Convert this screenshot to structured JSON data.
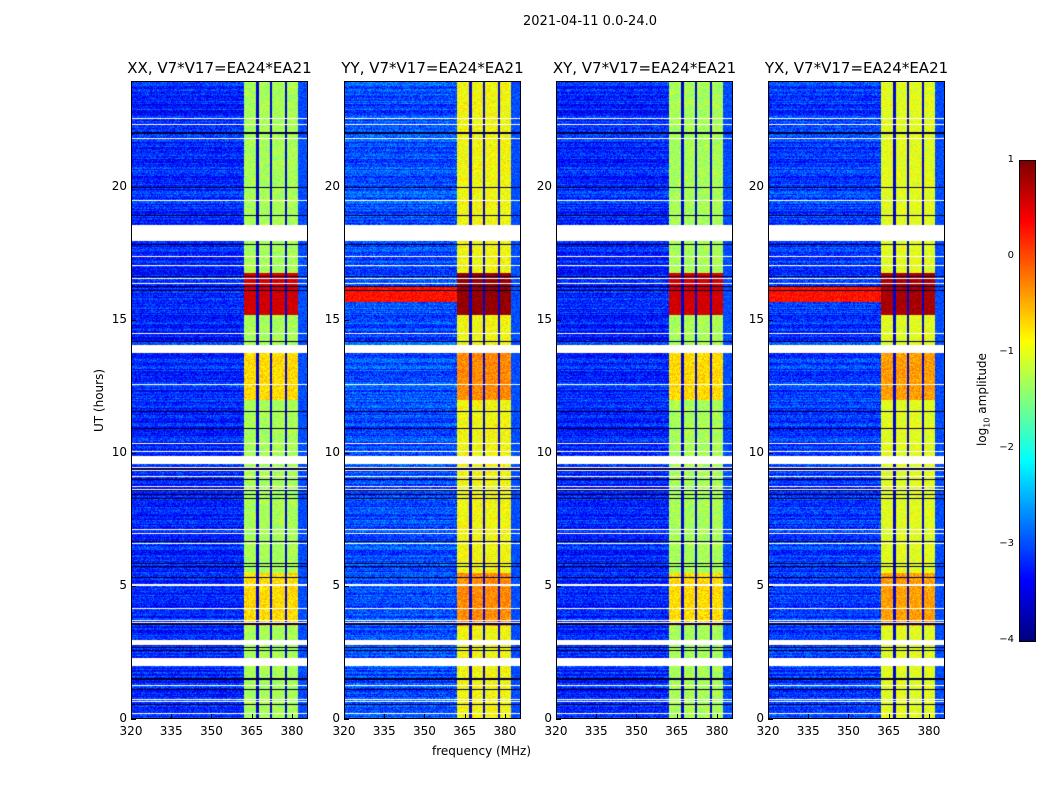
{
  "suptitle": "2021-04-11 0.0-24.0",
  "chart_data": {
    "type": "heatmap",
    "title": "2021-04-11 0.0-24.0",
    "xlabel": "frequency (MHz)",
    "ylabel": "UT (hours)",
    "xlim": [
      320,
      386
    ],
    "ylim": [
      0,
      24
    ],
    "xticks": [
      "320",
      "335",
      "350",
      "365",
      "380"
    ],
    "yticks": [
      "0",
      "5",
      "10",
      "15",
      "20"
    ],
    "panels": [
      {
        "title": "XX, V7*V17=EA24*EA21",
        "background_log_amp": -3.2,
        "band_log_amp": -1.3,
        "strong_rfi_log_amp": 0.6
      },
      {
        "title": "YY, V7*V17=EA24*EA21",
        "background_log_amp": -3.0,
        "band_log_amp": -0.9,
        "strong_rfi_log_amp": 0.9
      },
      {
        "title": "XY, V7*V17=EA24*EA21",
        "background_log_amp": -3.2,
        "band_log_amp": -1.3,
        "strong_rfi_log_amp": 0.6
      },
      {
        "title": "YX, V7*V17=EA24*EA21",
        "background_log_amp": -3.1,
        "band_log_amp": -1.0,
        "strong_rfi_log_amp": 0.8
      }
    ],
    "rfi_band_mhz": [
      362,
      382
    ],
    "dark_channel_lines_mhz": [
      367,
      372,
      377.5
    ],
    "strong_rfi_time_hours": [
      15.2,
      16.8
    ],
    "flagged_time_ranges_hours": [
      [
        18.0,
        18.6
      ],
      [
        13.8,
        14.1
      ],
      [
        9.6,
        9.9
      ],
      [
        2.8,
        3.0
      ],
      [
        2.0,
        2.3
      ]
    ],
    "colorbar": {
      "label": "log10 amplitude",
      "range": [
        -4,
        1
      ],
      "ticks": [
        "1",
        "0",
        "−1",
        "−2",
        "−3",
        "−4"
      ],
      "colormap": "jet"
    }
  }
}
